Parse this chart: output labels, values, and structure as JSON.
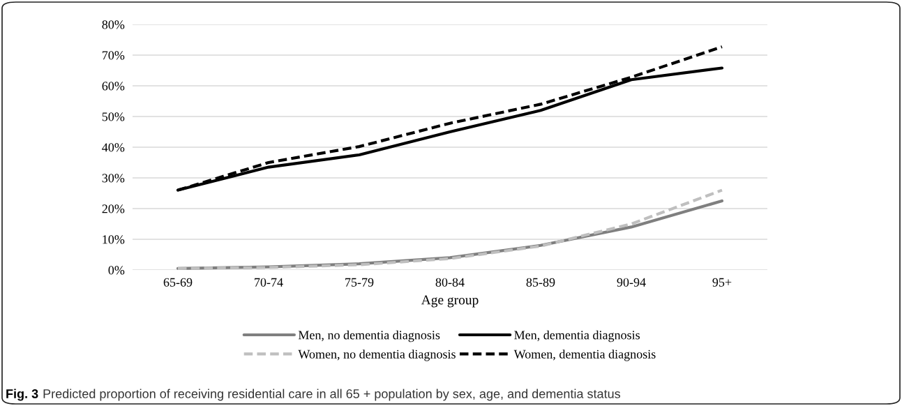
{
  "chart_data": {
    "type": "line",
    "xlabel": "Age group",
    "categories": [
      "65-69",
      "70-74",
      "75-79",
      "80-84",
      "85-89",
      "90-94",
      "95+"
    ],
    "series": [
      {
        "name": "Men, no dementia diagnosis",
        "color": "#7f7f7f",
        "line_style": "solid",
        "values": [
          0.5,
          1.0,
          2.0,
          4.0,
          8.0,
          14.0,
          22.5
        ]
      },
      {
        "name": "Men, dementia diagnosis",
        "color": "#000000",
        "line_style": "solid",
        "values": [
          26,
          33.5,
          37.5,
          45,
          52,
          62,
          65.8
        ]
      },
      {
        "name": "Women, no dementia diagnosis",
        "color": "#bfbfbf",
        "line_style": "dashed",
        "values": [
          0.5,
          0.8,
          1.7,
          3.7,
          7.8,
          15,
          26
        ]
      },
      {
        "name": "Women, dementia diagnosis",
        "color": "#000000",
        "line_style": "dashed",
        "values": [
          26,
          35,
          40.2,
          47.8,
          54,
          62.8,
          72.7
        ]
      }
    ],
    "ylim": [
      0,
      80
    ],
    "yticks": [
      {
        "value": 0,
        "label": "0%"
      },
      {
        "value": 10,
        "label": "10%"
      },
      {
        "value": 20,
        "label": "20%"
      },
      {
        "value": 30,
        "label": "30%"
      },
      {
        "value": 40,
        "label": "40%"
      },
      {
        "value": 50,
        "label": "50%"
      },
      {
        "value": 60,
        "label": "60%"
      },
      {
        "value": 70,
        "label": "70%"
      },
      {
        "value": 80,
        "label": "80%"
      }
    ],
    "grid": "y",
    "legend": "bottom",
    "marker": "none",
    "annotations": [
      "Fig. 3",
      "Predicted proportion of receiving residential care in all 65 + population by sex, age, and dementia status"
    ]
  }
}
